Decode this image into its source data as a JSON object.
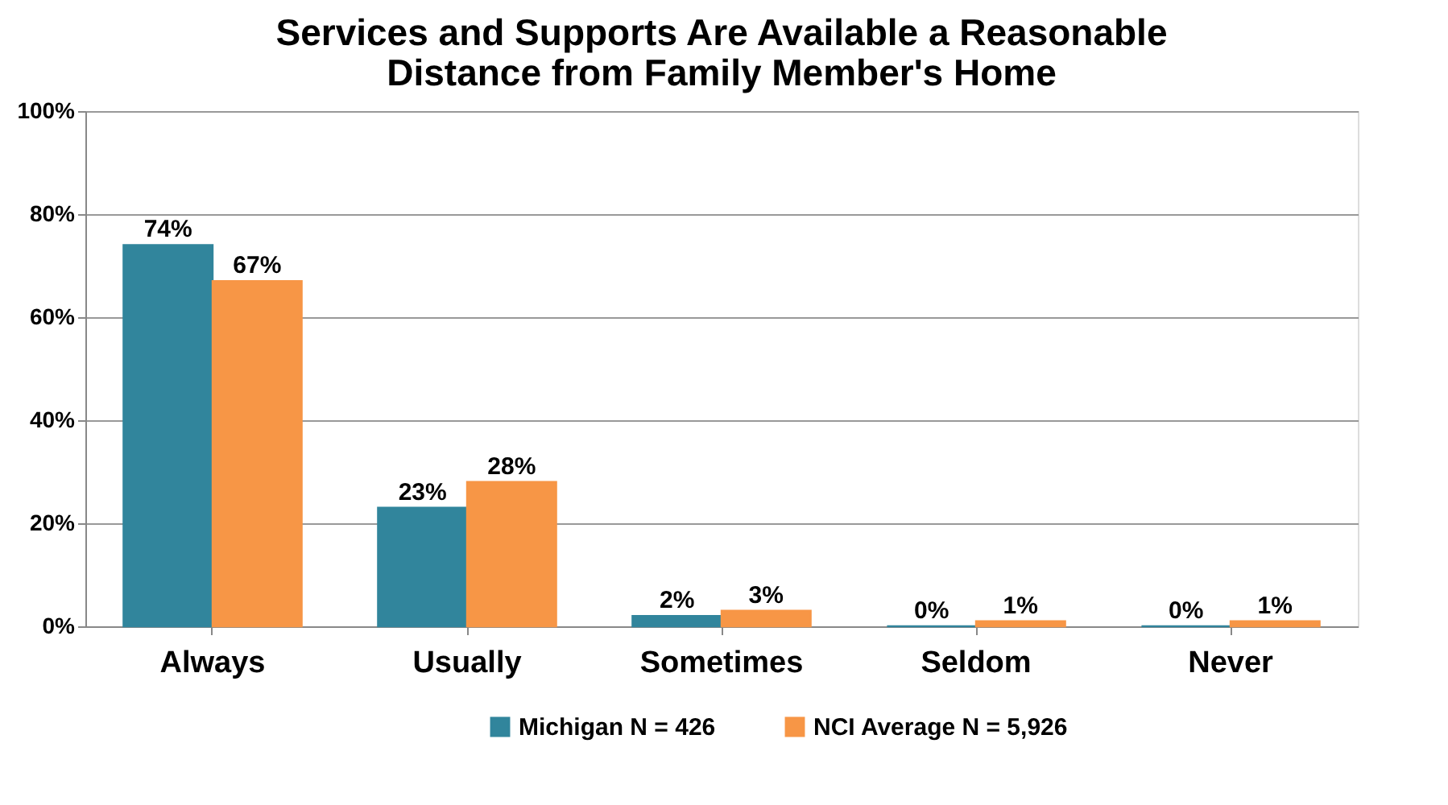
{
  "chart_data": {
    "type": "bar",
    "title": "Services and Supports Are Available a Reasonable\nDistance from Family Member's Home",
    "categories": [
      "Always",
      "Usually",
      "Sometimes",
      "Seldom",
      "Never"
    ],
    "series": [
      {
        "name": "Michigan N = 426",
        "color": "#31859c",
        "values": [
          74,
          23,
          2,
          0,
          0
        ],
        "value_labels": [
          "74%",
          "23%",
          "2%",
          "0%",
          "0%"
        ]
      },
      {
        "name": "NCI Average N = 5,926",
        "color": "#f79646",
        "values": [
          67,
          28,
          3,
          1,
          1
        ],
        "value_labels": [
          "67%",
          "28%",
          "3%",
          "1%",
          "1%"
        ]
      }
    ],
    "ylim": [
      0,
      100
    ],
    "yticks": [
      {
        "value": 0,
        "label": "0%"
      },
      {
        "value": 20,
        "label": "20%"
      },
      {
        "value": 40,
        "label": "40%"
      },
      {
        "value": 60,
        "label": "60%"
      },
      {
        "value": 80,
        "label": "80%"
      },
      {
        "value": 100,
        "label": "100%"
      }
    ],
    "grid": "y",
    "legend": "bottom"
  }
}
